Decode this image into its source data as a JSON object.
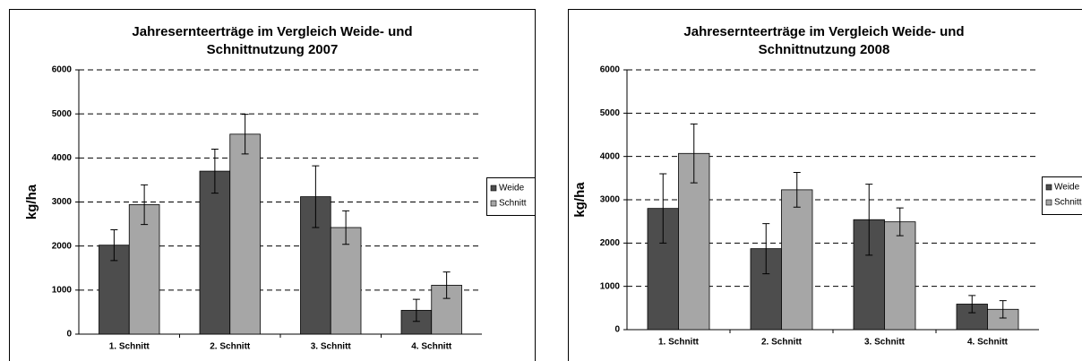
{
  "chart_data": [
    {
      "type": "bar",
      "title": [
        "Jahresernteerträge im Vergleich Weide- und",
        "Schnittnutzung 2007"
      ],
      "ylabel": "kg/ha",
      "categories": [
        "1. Schnitt",
        "2. Schnitt",
        "3. Schnitt",
        "4. Schnitt"
      ],
      "series": [
        {
          "name": "Weide",
          "color": "#4d4d4d",
          "values": [
            2020,
            3700,
            3120,
            540
          ],
          "errors": [
            350,
            500,
            700,
            250
          ]
        },
        {
          "name": "Schnitt",
          "color": "#a6a6a6",
          "values": [
            2940,
            4540,
            2420,
            1110
          ],
          "errors": [
            450,
            450,
            380,
            300
          ]
        }
      ],
      "ylim": [
        0,
        6000
      ],
      "yticks": [
        0,
        1000,
        2000,
        3000,
        4000,
        5000,
        6000
      ],
      "grid": true,
      "legend": "right"
    },
    {
      "type": "bar",
      "title": [
        "Jahresernteerträge im Vergleich Weide- und",
        "Schnittnutzung 2008"
      ],
      "ylabel": "kg/ha",
      "categories": [
        "1. Schnitt",
        "2. Schnitt",
        "3. Schnitt",
        "4. Schnitt"
      ],
      "series": [
        {
          "name": "Weide",
          "color": "#4d4d4d",
          "values": [
            2800,
            1870,
            2540,
            590
          ],
          "errors": [
            800,
            580,
            820,
            200
          ]
        },
        {
          "name": "Schnitt",
          "color": "#a6a6a6",
          "values": [
            4070,
            3230,
            2490,
            470
          ],
          "errors": [
            680,
            400,
            320,
            200
          ]
        }
      ],
      "ylim": [
        0,
        6000
      ],
      "yticks": [
        0,
        1000,
        2000,
        3000,
        4000,
        5000,
        6000
      ],
      "grid": true,
      "legend": "right"
    }
  ]
}
